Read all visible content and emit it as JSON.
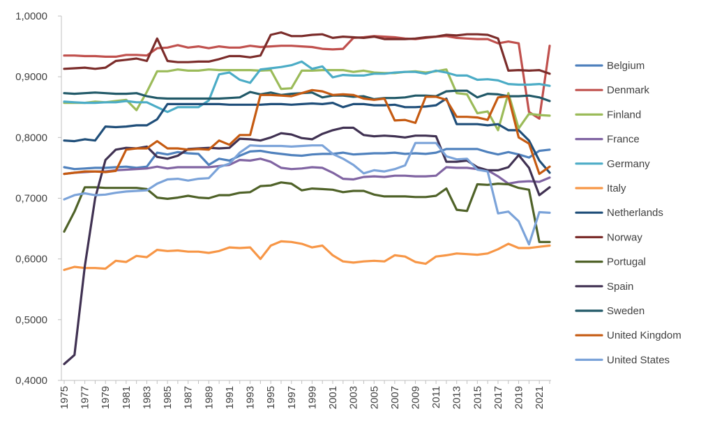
{
  "chart_data": {
    "type": "line",
    "title": "",
    "xlabel": "",
    "ylabel": "",
    "ylim": [
      0.4,
      1.0
    ],
    "grid": false,
    "legend_position": "right",
    "y_ticks": [
      "0,4000",
      "0,5000",
      "0,6000",
      "0,7000",
      "0,8000",
      "0,9000",
      "1,0000"
    ],
    "x_tick_labels": [
      "1975",
      "1977",
      "1979",
      "1981",
      "1983",
      "1985",
      "1987",
      "1989",
      "1991",
      "1993",
      "1995",
      "1997",
      "1999",
      "2001",
      "2003",
      "2005",
      "2007",
      "2009",
      "2011",
      "2013",
      "2015",
      "2017",
      "2019",
      "2021"
    ],
    "x": [
      1975,
      1976,
      1977,
      1978,
      1979,
      1980,
      1981,
      1982,
      1983,
      1984,
      1985,
      1986,
      1987,
      1988,
      1989,
      1990,
      1991,
      1992,
      1993,
      1994,
      1995,
      1996,
      1997,
      1998,
      1999,
      2000,
      2001,
      2002,
      2003,
      2004,
      2005,
      2006,
      2007,
      2008,
      2009,
      2010,
      2011,
      2012,
      2013,
      2014,
      2015,
      2016,
      2017,
      2018,
      2019,
      2020,
      2021,
      2022
    ],
    "series": [
      {
        "name": "Belgium",
        "color": "#4F81BD",
        "values": [
          0.751,
          0.748,
          0.749,
          0.75,
          0.75,
          0.751,
          0.752,
          0.75,
          0.752,
          0.775,
          0.772,
          0.776,
          0.774,
          0.773,
          0.755,
          0.765,
          0.762,
          0.77,
          0.777,
          0.778,
          0.775,
          0.773,
          0.771,
          0.77,
          0.772,
          0.773,
          0.773,
          0.775,
          0.772,
          0.773,
          0.774,
          0.774,
          0.775,
          0.773,
          0.774,
          0.773,
          0.775,
          0.781,
          0.781,
          0.781,
          0.781,
          0.776,
          0.772,
          0.776,
          0.772,
          0.767,
          0.778,
          0.78
        ]
      },
      {
        "name": "Denmark",
        "color": "#C0504D",
        "values": [
          0.935,
          0.935,
          0.934,
          0.934,
          0.933,
          0.933,
          0.936,
          0.936,
          0.935,
          0.947,
          0.948,
          0.952,
          0.948,
          0.95,
          0.947,
          0.95,
          0.948,
          0.948,
          0.951,
          0.949,
          0.95,
          0.951,
          0.951,
          0.95,
          0.949,
          0.946,
          0.945,
          0.946,
          0.964,
          0.965,
          0.967,
          0.966,
          0.965,
          0.963,
          0.962,
          0.964,
          0.966,
          0.967,
          0.964,
          0.963,
          0.962,
          0.962,
          0.955,
          0.958,
          0.955,
          0.842,
          0.831,
          0.951
        ]
      },
      {
        "name": "Finland",
        "color": "#9BBB59",
        "values": [
          0.857,
          0.857,
          0.857,
          0.859,
          0.858,
          0.86,
          0.862,
          0.845,
          0.875,
          0.909,
          0.909,
          0.912,
          0.91,
          0.91,
          0.912,
          0.911,
          0.911,
          0.911,
          0.911,
          0.91,
          0.911,
          0.88,
          0.881,
          0.91,
          0.91,
          0.911,
          0.911,
          0.911,
          0.908,
          0.91,
          0.907,
          0.906,
          0.906,
          0.908,
          0.909,
          0.907,
          0.909,
          0.912,
          0.873,
          0.871,
          0.84,
          0.843,
          0.812,
          0.873,
          0.815,
          0.839,
          0.837,
          0.836
        ]
      },
      {
        "name": "France",
        "color": "#8064A2",
        "values": [
          0.74,
          0.742,
          0.743,
          0.744,
          0.744,
          0.746,
          0.747,
          0.748,
          0.749,
          0.752,
          0.749,
          0.751,
          0.751,
          0.751,
          0.751,
          0.753,
          0.755,
          0.763,
          0.762,
          0.765,
          0.76,
          0.75,
          0.748,
          0.749,
          0.751,
          0.75,
          0.742,
          0.732,
          0.731,
          0.735,
          0.736,
          0.735,
          0.737,
          0.737,
          0.736,
          0.736,
          0.737,
          0.751,
          0.75,
          0.75,
          0.748,
          0.746,
          0.736,
          0.724,
          0.727,
          0.728,
          0.727,
          0.734
        ]
      },
      {
        "name": "Germany",
        "color": "#4BACC6",
        "values": [
          0.859,
          0.858,
          0.857,
          0.857,
          0.858,
          0.858,
          0.86,
          0.858,
          0.858,
          0.85,
          0.842,
          0.85,
          0.85,
          0.85,
          0.861,
          0.904,
          0.907,
          0.895,
          0.89,
          0.912,
          0.914,
          0.916,
          0.919,
          0.925,
          0.913,
          0.917,
          0.899,
          0.903,
          0.902,
          0.902,
          0.905,
          0.905,
          0.907,
          0.908,
          0.908,
          0.905,
          0.91,
          0.907,
          0.902,
          0.902,
          0.895,
          0.896,
          0.894,
          0.888,
          0.887,
          0.887,
          0.888,
          0.885
        ]
      },
      {
        "name": "Italy",
        "color": "#F79646",
        "values": [
          0.582,
          0.587,
          0.585,
          0.585,
          0.584,
          0.597,
          0.595,
          0.605,
          0.603,
          0.615,
          0.613,
          0.614,
          0.612,
          0.612,
          0.61,
          0.613,
          0.619,
          0.618,
          0.619,
          0.6,
          0.622,
          0.629,
          0.628,
          0.625,
          0.619,
          0.622,
          0.606,
          0.596,
          0.594,
          0.596,
          0.597,
          0.596,
          0.606,
          0.604,
          0.595,
          0.592,
          0.604,
          0.606,
          0.609,
          0.608,
          0.607,
          0.609,
          0.616,
          0.625,
          0.618,
          0.618,
          0.62,
          0.622
        ]
      },
      {
        "name": "Netherlands",
        "color": "#1F4E79",
        "values": [
          0.795,
          0.794,
          0.797,
          0.795,
          0.818,
          0.817,
          0.818,
          0.82,
          0.82,
          0.83,
          0.855,
          0.855,
          0.855,
          0.855,
          0.855,
          0.855,
          0.854,
          0.854,
          0.854,
          0.854,
          0.855,
          0.855,
          0.854,
          0.855,
          0.856,
          0.855,
          0.857,
          0.85,
          0.855,
          0.855,
          0.853,
          0.853,
          0.854,
          0.85,
          0.85,
          0.851,
          0.853,
          0.864,
          0.822,
          0.822,
          0.822,
          0.82,
          0.822,
          0.812,
          0.812,
          0.795,
          0.762,
          0.742
        ]
      },
      {
        "name": "Norway",
        "color": "#7B2C2A",
        "values": [
          0.913,
          0.914,
          0.915,
          0.913,
          0.915,
          0.926,
          0.928,
          0.93,
          0.926,
          0.963,
          0.926,
          0.924,
          0.924,
          0.925,
          0.925,
          0.929,
          0.934,
          0.934,
          0.932,
          0.935,
          0.969,
          0.973,
          0.967,
          0.967,
          0.969,
          0.97,
          0.964,
          0.966,
          0.965,
          0.964,
          0.966,
          0.962,
          0.962,
          0.962,
          0.963,
          0.965,
          0.966,
          0.969,
          0.968,
          0.97,
          0.97,
          0.969,
          0.963,
          0.91,
          0.911,
          0.91,
          0.911,
          0.905
        ]
      },
      {
        "name": "Portugal",
        "color": "#4F6228",
        "values": [
          0.645,
          0.678,
          0.718,
          0.718,
          0.717,
          0.717,
          0.717,
          0.717,
          0.715,
          0.701,
          0.699,
          0.701,
          0.704,
          0.701,
          0.7,
          0.705,
          0.705,
          0.709,
          0.71,
          0.72,
          0.721,
          0.726,
          0.724,
          0.713,
          0.716,
          0.715,
          0.714,
          0.71,
          0.712,
          0.712,
          0.706,
          0.703,
          0.703,
          0.703,
          0.702,
          0.702,
          0.704,
          0.716,
          0.681,
          0.679,
          0.723,
          0.722,
          0.724,
          0.723,
          0.717,
          0.714,
          0.628,
          0.628
        ]
      },
      {
        "name": "Spain",
        "color": "#403152",
        "values": [
          0.427,
          0.442,
          0.588,
          0.7,
          0.763,
          0.78,
          0.783,
          0.782,
          0.785,
          0.768,
          0.765,
          0.77,
          0.781,
          0.782,
          0.783,
          0.782,
          0.783,
          0.798,
          0.797,
          0.795,
          0.8,
          0.807,
          0.805,
          0.799,
          0.797,
          0.806,
          0.812,
          0.816,
          0.816,
          0.804,
          0.802,
          0.803,
          0.802,
          0.8,
          0.803,
          0.803,
          0.802,
          0.76,
          0.76,
          0.762,
          0.751,
          0.746,
          0.746,
          0.751,
          0.771,
          0.75,
          0.705,
          0.718
        ]
      },
      {
        "name": "Sweden",
        "color": "#215968",
        "values": [
          0.873,
          0.872,
          0.873,
          0.874,
          0.873,
          0.872,
          0.872,
          0.873,
          0.868,
          0.865,
          0.864,
          0.864,
          0.864,
          0.864,
          0.864,
          0.864,
          0.865,
          0.866,
          0.875,
          0.871,
          0.874,
          0.87,
          0.872,
          0.873,
          0.874,
          0.866,
          0.869,
          0.869,
          0.867,
          0.868,
          0.863,
          0.865,
          0.865,
          0.866,
          0.869,
          0.869,
          0.868,
          0.876,
          0.877,
          0.877,
          0.866,
          0.872,
          0.871,
          0.868,
          0.868,
          0.869,
          0.866,
          0.86
        ]
      },
      {
        "name": "United Kingdom",
        "color": "#C55A11",
        "values": [
          0.74,
          0.742,
          0.744,
          0.744,
          0.743,
          0.745,
          0.78,
          0.782,
          0.782,
          0.794,
          0.782,
          0.782,
          0.78,
          0.781,
          0.78,
          0.795,
          0.788,
          0.804,
          0.804,
          0.87,
          0.87,
          0.869,
          0.868,
          0.873,
          0.878,
          0.876,
          0.87,
          0.871,
          0.87,
          0.864,
          0.862,
          0.864,
          0.828,
          0.829,
          0.824,
          0.867,
          0.867,
          0.862,
          0.834,
          0.834,
          0.833,
          0.829,
          0.866,
          0.868,
          0.8,
          0.79,
          0.74,
          0.752
        ]
      },
      {
        "name": "United States",
        "color": "#7BA3D9",
        "values": [
          0.698,
          0.705,
          0.708,
          0.705,
          0.706,
          0.709,
          0.711,
          0.712,
          0.713,
          0.724,
          0.731,
          0.732,
          0.729,
          0.732,
          0.733,
          0.751,
          0.757,
          0.775,
          0.787,
          0.786,
          0.786,
          0.786,
          0.785,
          0.786,
          0.787,
          0.787,
          0.773,
          0.765,
          0.755,
          0.741,
          0.746,
          0.744,
          0.748,
          0.754,
          0.791,
          0.791,
          0.791,
          0.769,
          0.764,
          0.765,
          0.747,
          0.744,
          0.675,
          0.678,
          0.662,
          0.624,
          0.677,
          0.676
        ]
      }
    ]
  }
}
